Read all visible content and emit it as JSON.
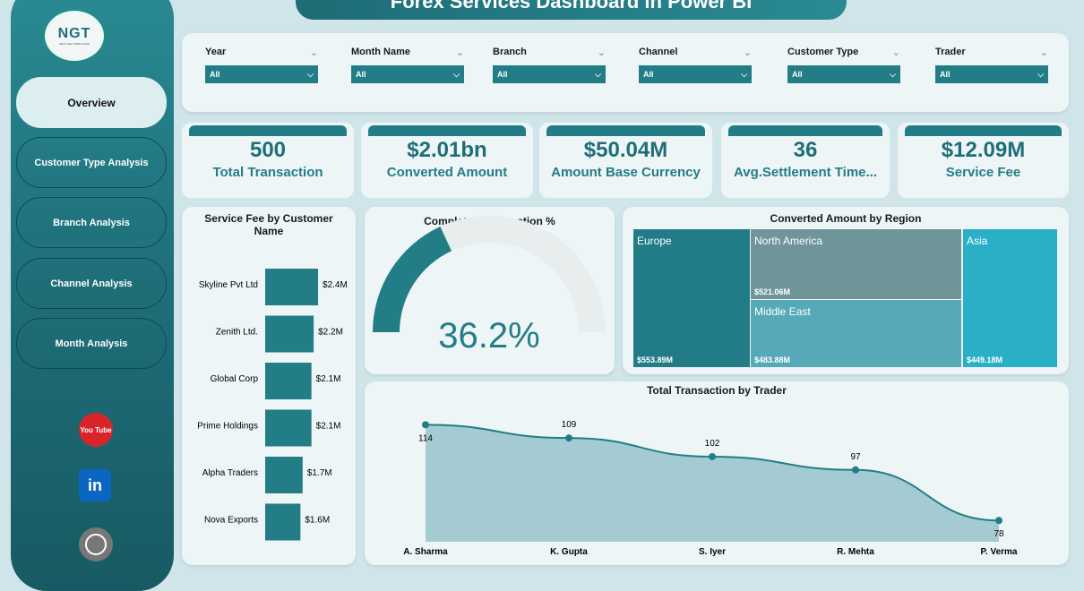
{
  "title": "Forex Services Dashboard in Power BI",
  "logo": {
    "text": "NGT",
    "subtext": "NEXT GEN TEMPLATES"
  },
  "nav": [
    {
      "label": "Overview",
      "active": true
    },
    {
      "label": "Customer Type Analysis"
    },
    {
      "label": "Branch Analysis"
    },
    {
      "label": "Channel Analysis"
    },
    {
      "label": "Month Analysis"
    }
  ],
  "social": [
    {
      "icon": "youtube-icon",
      "label": "You Tube",
      "color": "#d9252a"
    },
    {
      "icon": "linkedin-icon",
      "label": "in",
      "color": "#0a66c2"
    },
    {
      "icon": "globe-icon",
      "label": "",
      "color": "#777777"
    }
  ],
  "filters": [
    {
      "label": "Year",
      "value": "All"
    },
    {
      "label": "Month Name",
      "value": "All"
    },
    {
      "label": "Branch",
      "value": "All"
    },
    {
      "label": "Channel",
      "value": "All"
    },
    {
      "label": "Customer Type",
      "value": "All"
    },
    {
      "label": "Trader",
      "value": "All"
    }
  ],
  "kpis": [
    {
      "value": "500",
      "label": "Total Transaction"
    },
    {
      "value": "$2.01bn",
      "label": "Converted Amount"
    },
    {
      "value": "$50.04M",
      "label": "Amount Base Currency"
    },
    {
      "value": "36",
      "label": "Avg.Settlement Time..."
    },
    {
      "value": "$12.09M",
      "label": "Service Fee"
    }
  ],
  "colors": {
    "accent": "#237d87"
  },
  "chart_data": [
    {
      "type": "bar",
      "orientation": "horizontal",
      "title": "Service Fee by Customer Name",
      "categories": [
        "Skyline Pvt Ltd",
        "Zenith Ltd.",
        "Global Corp",
        "Prime Holdings",
        "Alpha Traders",
        "Nova Exports"
      ],
      "values": [
        2.4,
        2.2,
        2.1,
        2.1,
        1.7,
        1.6
      ],
      "labels": [
        "$2.4M",
        "$2.2M",
        "$2.1M",
        "$2.1M",
        "$1.7M",
        "$1.6M"
      ],
      "unit": "M"
    },
    {
      "type": "gauge",
      "title": "Completed Transaction %",
      "value": 36.2,
      "label": "36.2%",
      "range": [
        0,
        100
      ]
    },
    {
      "type": "treemap",
      "title": "Converted Amount by Region",
      "items": [
        {
          "name": "Europe",
          "label": "$553.89M",
          "value": 553.89,
          "color": "#217c87"
        },
        {
          "name": "North America",
          "label": "$521.06M",
          "value": 521.06,
          "color": "#6f959b"
        },
        {
          "name": "Middle East",
          "label": "$483.88M",
          "value": 483.88,
          "color": "#56a9b7"
        },
        {
          "name": "Asia",
          "label": "$449.18M",
          "value": 449.18,
          "color": "#2ab0c6"
        }
      ]
    },
    {
      "type": "area",
      "title": "Total Transaction by Trader",
      "categories": [
        "A. Sharma",
        "K. Gupta",
        "S. Iyer",
        "R. Mehta",
        "P. Verma"
      ],
      "values": [
        114,
        109,
        102,
        97,
        78
      ],
      "ylim": [
        70,
        120
      ]
    }
  ]
}
